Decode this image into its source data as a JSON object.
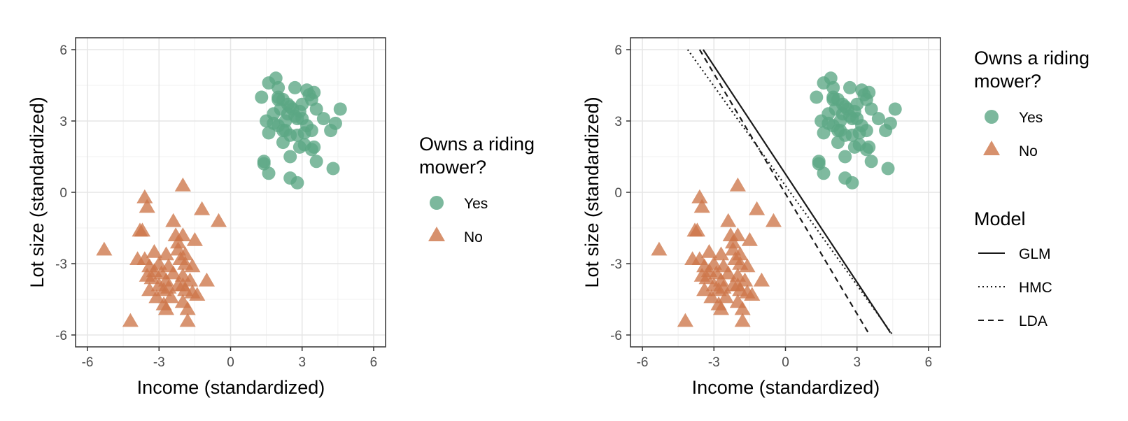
{
  "colors": {
    "yes": "#5BA684",
    "no": "#CD7649",
    "grid": "#e6e6e6",
    "frame": "#333333",
    "line": "#1a1a1a"
  },
  "legend_group": {
    "title": "Owns a riding mower?",
    "title_lines": [
      "Owns a riding",
      "mower?"
    ],
    "yes_label": "Yes",
    "no_label": "No"
  },
  "legend_model": {
    "title": "Model",
    "items": [
      {
        "label": "GLM",
        "style": "solid"
      },
      {
        "label": "HMC",
        "style": "dotted"
      },
      {
        "label": "LDA",
        "style": "dashed"
      }
    ]
  },
  "chart_data": [
    {
      "type": "scatter",
      "xlabel": "Income (standardized)",
      "ylabel": "Lot size (standardized)",
      "xlim": [
        -6.5,
        6.5
      ],
      "ylim": [
        -6.5,
        6.5
      ],
      "xticks": [
        -6,
        -3,
        0,
        3,
        6
      ],
      "yticks": [
        -6,
        -3,
        0,
        3,
        6
      ],
      "grid": true,
      "legend": "right",
      "series": [
        {
          "name": "Yes",
          "marker": "circle",
          "points": [
            [
              1.3,
              4.0
            ],
            [
              1.6,
              4.6
            ],
            [
              1.9,
              4.8
            ],
            [
              1.5,
              3.0
            ],
            [
              1.6,
              2.5
            ],
            [
              1.8,
              3.3
            ],
            [
              2.0,
              2.8
            ],
            [
              2.1,
              3.5
            ],
            [
              2.0,
              4.0
            ],
            [
              2.2,
              3.9
            ],
            [
              2.2,
              2.6
            ],
            [
              2.2,
              2.1
            ],
            [
              2.3,
              3.0
            ],
            [
              2.4,
              3.7
            ],
            [
              2.4,
              3.3
            ],
            [
              2.5,
              3.6
            ],
            [
              2.5,
              2.4
            ],
            [
              2.6,
              3.5
            ],
            [
              2.7,
              3.2
            ],
            [
              2.8,
              3.1
            ],
            [
              2.9,
              3.4
            ],
            [
              2.8,
              2.4
            ],
            [
              2.7,
              4.4
            ],
            [
              3.0,
              3.1
            ],
            [
              3.1,
              2.5
            ],
            [
              3.2,
              4.3
            ],
            [
              3.3,
              4.1
            ],
            [
              3.2,
              2.8
            ],
            [
              3.4,
              2.6
            ],
            [
              3.5,
              4.2
            ],
            [
              3.4,
              3.9
            ],
            [
              3.6,
              3.5
            ],
            [
              3.9,
              3.1
            ],
            [
              4.2,
              2.6
            ],
            [
              4.4,
              2.9
            ],
            [
              4.6,
              3.5
            ],
            [
              2.0,
              4.4
            ],
            [
              1.8,
              2.9
            ],
            [
              1.4,
              1.3
            ],
            [
              1.4,
              1.2
            ],
            [
              1.6,
              0.8
            ],
            [
              2.5,
              1.5
            ],
            [
              2.9,
              1.9
            ],
            [
              3.4,
              1.8
            ],
            [
              3.5,
              1.9
            ],
            [
              3.6,
              1.3
            ],
            [
              4.3,
              1.0
            ],
            [
              2.5,
              0.6
            ],
            [
              2.8,
              0.4
            ],
            [
              2.0,
              3.9
            ],
            [
              2.3,
              2.6
            ],
            [
              3.0,
              3.7
            ],
            [
              3.1,
              2.0
            ]
          ]
        },
        {
          "name": "No",
          "marker": "triangle",
          "points": [
            [
              -5.3,
              -2.4
            ],
            [
              -4.2,
              -5.4
            ],
            [
              -3.6,
              -0.2
            ],
            [
              -3.5,
              -0.6
            ],
            [
              -3.8,
              -1.6
            ],
            [
              -3.7,
              -1.6
            ],
            [
              -3.9,
              -2.8
            ],
            [
              -3.6,
              -2.8
            ],
            [
              -3.4,
              -3.1
            ],
            [
              -3.5,
              -3.5
            ],
            [
              -3.3,
              -3.6
            ],
            [
              -3.2,
              -3.3
            ],
            [
              -3.4,
              -4.1
            ],
            [
              -3.1,
              -4.4
            ],
            [
              -3.0,
              -3.9
            ],
            [
              -3.0,
              -3.0
            ],
            [
              -2.9,
              -3.4
            ],
            [
              -2.8,
              -4.1
            ],
            [
              -2.7,
              -3.7
            ],
            [
              -2.7,
              -2.6
            ],
            [
              -2.6,
              -3.1
            ],
            [
              -2.6,
              -4.0
            ],
            [
              -2.8,
              -4.7
            ],
            [
              -2.5,
              -4.4
            ],
            [
              -2.4,
              -1.2
            ],
            [
              -2.3,
              -1.8
            ],
            [
              -2.2,
              -2.1
            ],
            [
              -2.2,
              -2.4
            ],
            [
              -2.1,
              -2.8
            ],
            [
              -2.0,
              0.3
            ],
            [
              -2.0,
              -1.8
            ],
            [
              -2.0,
              -3.5
            ],
            [
              -2.0,
              -3.9
            ],
            [
              -2.0,
              -4.6
            ],
            [
              -1.9,
              -2.6
            ],
            [
              -1.9,
              -3.0
            ],
            [
              -1.9,
              -4.1
            ],
            [
              -1.8,
              -5.4
            ],
            [
              -1.8,
              -4.9
            ],
            [
              -1.7,
              -3.7
            ],
            [
              -1.6,
              -4.2
            ],
            [
              -1.5,
              -2.0
            ],
            [
              -1.4,
              -4.3
            ],
            [
              -1.2,
              -0.7
            ],
            [
              -1.0,
              -3.7
            ],
            [
              -0.5,
              -1.2
            ],
            [
              -3.2,
              -2.5
            ],
            [
              -2.4,
              -3.4
            ],
            [
              -2.2,
              -3.9
            ],
            [
              -1.6,
              -3.1
            ],
            [
              -2.7,
              -4.9
            ]
          ]
        }
      ]
    },
    {
      "type": "line",
      "xlabel": "Income (standardized)",
      "ylabel": "Lot size (standardized)",
      "xlim": [
        -6.5,
        6.5
      ],
      "ylim": [
        -6.5,
        6.5
      ],
      "xticks": [
        -6,
        -3,
        0,
        3,
        6
      ],
      "yticks": [
        -6,
        -3,
        0,
        3,
        6
      ],
      "grid": true,
      "legend": "right",
      "points_from": "chart 1 series",
      "series": [
        {
          "name": "GLM",
          "style": "solid",
          "x": [
            -3.45,
            4.4
          ],
          "y": [
            6.0,
            -5.9
          ]
        },
        {
          "name": "HMC",
          "style": "dotted",
          "x": [
            -4.1,
            4.5
          ],
          "y": [
            6.0,
            -6.0
          ]
        },
        {
          "name": "LDA",
          "style": "dashed",
          "x": [
            -3.6,
            3.5
          ],
          "y": [
            6.0,
            -5.95
          ]
        }
      ]
    }
  ]
}
